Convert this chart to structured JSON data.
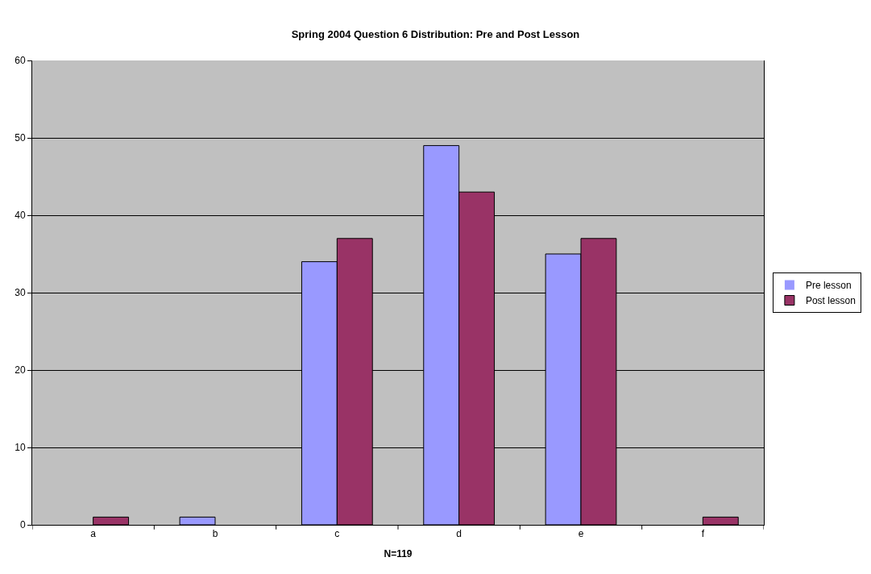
{
  "chart_data": {
    "type": "bar",
    "title": "Spring 2004 Question 6 Distribution: Pre and Post Lesson",
    "xlabel": "N=119",
    "categories": [
      "a",
      "b",
      "c",
      "d",
      "e",
      "f"
    ],
    "series": [
      {
        "name": "Pre lesson",
        "color": "#9999ff",
        "values": [
          0,
          1,
          34,
          49,
          35,
          0
        ]
      },
      {
        "name": "Post lesson",
        "color": "#993366",
        "values": [
          1,
          0,
          37,
          43,
          37,
          1
        ]
      }
    ],
    "ylim": [
      0,
      60
    ],
    "yticks": [
      0,
      10,
      20,
      30,
      40,
      50,
      60
    ],
    "grid": "y",
    "legend": "right"
  }
}
